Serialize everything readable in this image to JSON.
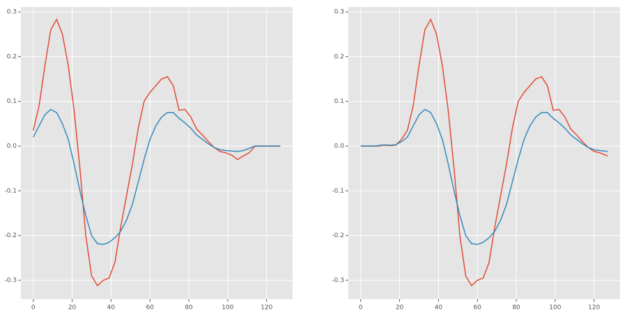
{
  "chart_data": [
    {
      "type": "line",
      "grid": true,
      "xlim": [
        -6.35,
        133.35
      ],
      "ylim": [
        -0.342,
        0.311
      ],
      "xticks": [
        0,
        20,
        40,
        60,
        80,
        100,
        120
      ],
      "yticks": [
        -0.3,
        -0.2,
        -0.1,
        {
          "value": 0,
          "label": "0.0"
        },
        0.1,
        0.2,
        0.3
      ],
      "x": [
        0,
        3,
        6,
        9,
        12,
        15,
        18,
        21,
        24,
        27,
        30,
        33,
        36,
        39,
        42,
        45,
        48,
        51,
        54,
        57,
        60,
        63,
        66,
        69,
        72,
        75,
        78,
        81,
        84,
        87,
        90,
        93,
        96,
        99,
        102,
        105,
        108,
        111,
        114,
        117,
        120,
        123,
        127
      ],
      "series": [
        {
          "color": "#E24A33",
          "values": [
            0.035,
            0.09,
            0.18,
            0.26,
            0.283,
            0.25,
            0.18,
            0.08,
            -0.05,
            -0.2,
            -0.29,
            -0.312,
            -0.3,
            -0.295,
            -0.26,
            -0.18,
            -0.11,
            -0.04,
            0.04,
            0.1,
            0.12,
            0.135,
            0.15,
            0.155,
            0.135,
            0.08,
            0.082,
            0.065,
            0.038,
            0.025,
            0.01,
            -0.003,
            -0.012,
            -0.015,
            -0.02,
            -0.03,
            -0.022,
            -0.015,
            0,
            0,
            0,
            0,
            0
          ]
        },
        {
          "color": "#348ABD",
          "values": [
            0.02,
            0.045,
            0.07,
            0.082,
            0.075,
            0.05,
            0.015,
            -0.04,
            -0.1,
            -0.155,
            -0.2,
            -0.218,
            -0.22,
            -0.215,
            -0.205,
            -0.19,
            -0.165,
            -0.13,
            -0.08,
            -0.03,
            0.015,
            0.045,
            0.065,
            0.075,
            0.075,
            0.062,
            0.052,
            0.04,
            0.025,
            0.015,
            0.005,
            -0.003,
            -0.008,
            -0.01,
            -0.011,
            -0.012,
            -0.01,
            -0.005,
            0,
            0,
            0,
            0,
            0
          ]
        }
      ]
    },
    {
      "type": "line",
      "grid": true,
      "xlim": [
        -6.35,
        133.35
      ],
      "ylim": [
        -0.342,
        0.311
      ],
      "xticks": [
        0,
        20,
        40,
        60,
        80,
        100,
        120
      ],
      "yticks": [
        -0.3,
        -0.2,
        -0.1,
        {
          "value": 0,
          "label": "0.0"
        },
        0.1,
        0.2,
        0.3
      ],
      "x": [
        0,
        3,
        6,
        9,
        12,
        15,
        18,
        21,
        24,
        27,
        30,
        33,
        36,
        39,
        42,
        45,
        48,
        51,
        54,
        57,
        60,
        63,
        66,
        69,
        72,
        75,
        78,
        81,
        84,
        87,
        90,
        93,
        96,
        99,
        102,
        105,
        108,
        111,
        114,
        117,
        120,
        123,
        127
      ],
      "series": [
        {
          "color": "#E24A33",
          "values": [
            0,
            0,
            0,
            0,
            0.002,
            0.001,
            0.002,
            0.015,
            0.035,
            0.09,
            0.18,
            0.26,
            0.283,
            0.25,
            0.18,
            0.08,
            -0.05,
            -0.2,
            -0.29,
            -0.312,
            -0.3,
            -0.295,
            -0.26,
            -0.18,
            -0.11,
            -0.04,
            0.04,
            0.1,
            0.12,
            0.135,
            0.15,
            0.155,
            0.135,
            0.08,
            0.082,
            0.065,
            0.038,
            0.025,
            0.01,
            -0.003,
            -0.012,
            -0.015,
            -0.022
          ]
        },
        {
          "color": "#348ABD",
          "values": [
            0,
            0,
            0,
            0.001,
            0.003,
            0.002,
            0.003,
            0.01,
            0.02,
            0.045,
            0.07,
            0.082,
            0.075,
            0.05,
            0.015,
            -0.04,
            -0.1,
            -0.155,
            -0.2,
            -0.218,
            -0.22,
            -0.215,
            -0.205,
            -0.19,
            -0.165,
            -0.13,
            -0.08,
            -0.03,
            0.015,
            0.045,
            0.065,
            0.075,
            0.075,
            0.062,
            0.052,
            0.04,
            0.025,
            0.015,
            0.005,
            -0.003,
            -0.008,
            -0.01,
            -0.012
          ]
        }
      ]
    }
  ]
}
